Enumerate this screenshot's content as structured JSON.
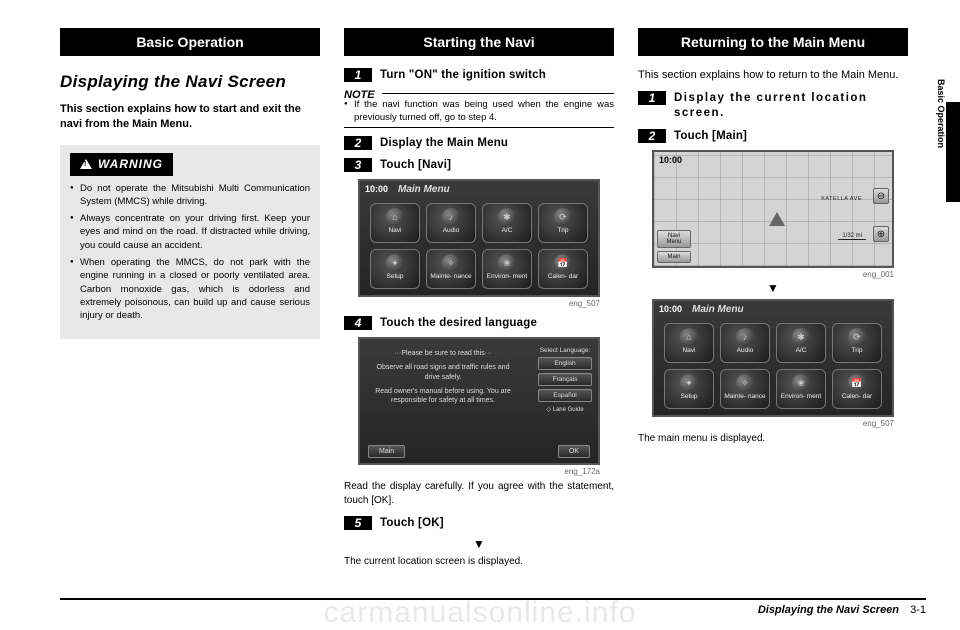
{
  "watermark": "carmanualsonline.info",
  "side_label": "Basic Operation",
  "footer": {
    "title": "Displaying the Navi Screen",
    "page": "3-1"
  },
  "col1": {
    "section_bar": "Basic Operation",
    "title": "Displaying the Navi Screen",
    "intro": "This section explains how to start and exit the navi from the Main Menu.",
    "warning": {
      "label": "WARNING",
      "items": [
        "Do not operate the Mitsubishi Multi Communication System (MMCS) while driving.",
        "Always concentrate on your driving first. Keep your eyes and mind on the road. If distracted while driving, you could cause an accident.",
        "When operating the MMCS, do not park with the engine running in a closed or poorly ventilated area. Carbon monoxide gas, which is odorless and extremely poisonous, can build up and cause serious injury or death."
      ]
    }
  },
  "col2": {
    "bar": "Starting the Navi",
    "steps": {
      "s1": "Turn \"ON\" the ignition switch",
      "s2": "Display the Main Menu",
      "s3": "Touch [Navi]",
      "s4": "Touch the desired language",
      "s5": "Touch [OK]"
    },
    "note_label": "NOTE",
    "note_body": "If the navi function was being used when the engine was previously turned off, go to step 4.",
    "main_menu": {
      "clock": "10:00",
      "title": "Main Menu",
      "buttons": [
        "Navi",
        "Audio",
        "A/C",
        "Trip",
        "Setup",
        "Mainte-\nnance",
        "Environ-\nment",
        "Calen-\ndar"
      ],
      "icons": [
        "⌂",
        "♪",
        "✱",
        "⟳",
        "✦",
        "✧",
        "❀",
        "📅"
      ],
      "caption": "eng_507"
    },
    "lang_screen": {
      "lines": [
        "···Please be sure to read this···",
        "Observe all road signs and traffic rules and drive safely.",
        "Read owner's manual before using. You are responsible for safety at all times."
      ],
      "select_label": "Select Language:",
      "langs": [
        "English",
        "Français",
        "Español"
      ],
      "lane": "◇ Lane Guide",
      "main_btn": "Main",
      "ok_btn": "OK",
      "caption": "eng_172a"
    },
    "after4": "Read the display carefully. If you agree with the statement, touch [OK].",
    "after5": "The current location screen is displayed."
  },
  "col3": {
    "bar": "Returning to the Main Menu",
    "intro": "This section explains how to return to the Main Menu.",
    "steps": {
      "s1": "Display the current location screen.",
      "s2": "Touch [Main]"
    },
    "map": {
      "clock": "10:00",
      "street": "KATELLA AVE",
      "tabs": [
        "Navi Menu",
        "Main"
      ],
      "scale": "1/32 mi",
      "caption": "eng_001"
    },
    "mm_caption": "eng_507",
    "closing": "The main menu is displayed."
  },
  "colors": {
    "page_bg": "#ffffff",
    "text": "#000000",
    "black": "#000000",
    "warning_bg": "#e8e8e8",
    "caption": "#666666",
    "screen_dark_top": "#3a3a3a",
    "screen_dark_bot": "#242424",
    "screen_border": "#555555",
    "map_bg": "#d4d4d4",
    "watermark": "rgba(0,0,0,0.09)"
  }
}
